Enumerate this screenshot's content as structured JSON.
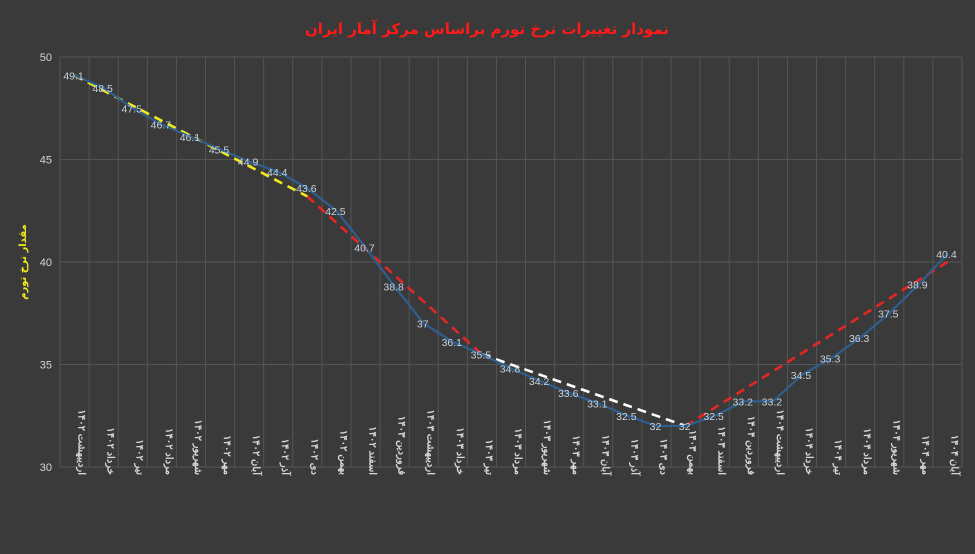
{
  "chart_data": {
    "type": "line",
    "title": "نمودار تغییرات نرخ تورم براساس مرکز آمار ایران",
    "ylabel": "مقدار نرخ تورم",
    "xlabel": "",
    "ylim": [
      30,
      50
    ],
    "yticks": [
      "30",
      "35",
      "40",
      "45",
      "50"
    ],
    "grid": true,
    "categories": [
      "اردیبهشت ۱۴۰۲",
      "خرداد ۱۴۰۲",
      "تیر ۱۴۰۲",
      "مرداد ۱۴۰۲",
      "شهریور ۱۴۰۲",
      "مهر ۱۴۰۲",
      "آبان ۱۴۰۲",
      "آذر ۱۴۰۲",
      "دی ۱۴۰۲",
      "بهمن ۱۴۰۲",
      "اسفند ۱۴۰۲",
      "فروردین ۱۴۰۳",
      "اردیبهشت ۱۴۰۳",
      "خرداد ۱۴۰۳",
      "تیر ۱۴۰۳",
      "مرداد ۱۴۰۳",
      "شهریور ۱۴۰۳",
      "مهر ۱۴۰۳",
      "آبان ۱۴۰۳",
      "آذر ۱۴۰۳",
      "دی ۱۴۰۳",
      "بهمن ۱۴۰۳",
      "اسفند ۱۴۰۳",
      "فروردین ۱۴۰۴",
      "اردیبهشت ۱۴۰۴",
      "خرداد ۱۴۰۴",
      "تیر ۱۴۰۴",
      "مرداد ۱۴۰۴",
      "شهریور ۱۴۰۴",
      "مهر ۱۴۰۴",
      "آبان ۱۴۰۴"
    ],
    "values": [
      49.1,
      48.5,
      47.5,
      46.7,
      46.1,
      45.5,
      44.9,
      44.4,
      43.6,
      42.5,
      40.7,
      38.8,
      37,
      36.1,
      35.5,
      34.8,
      34.2,
      33.6,
      33.1,
      32.5,
      32,
      32,
      32.5,
      33.2,
      33.2,
      34.5,
      35.3,
      36.3,
      37.5,
      38.9,
      40.4
    ],
    "data_labels": [
      "49.1",
      "48.5",
      "47.5",
      "46.7",
      "46.1",
      "45.5",
      "44.9",
      "44.4",
      "43.6",
      "42.5",
      "40.7",
      "38.8",
      "37",
      "36.1",
      "35.5",
      "34.8",
      "34.2",
      "33.6",
      "33.1",
      "32.5",
      "32",
      "32",
      "32.5",
      "33.2",
      "33.2",
      "34.5",
      "35.3",
      "36.3",
      "37.5",
      "38.9",
      "40.4"
    ],
    "trend_lines": [
      {
        "from_index": 0,
        "to_index": 8,
        "from_value": 49.1,
        "to_value": 43.2,
        "color": "#f2ea1d"
      },
      {
        "from_index": 8,
        "to_index": 14,
        "from_value": 43.2,
        "to_value": 35.5,
        "color": "#e32626"
      },
      {
        "from_index": 14,
        "to_index": 21,
        "from_value": 35.5,
        "to_value": 32,
        "color": "#ffffff"
      },
      {
        "from_index": 21,
        "to_index": 30,
        "from_value": 32,
        "to_value": 40.0,
        "color": "#e32626"
      }
    ],
    "colors": {
      "background": "#3a3a3a",
      "grid": "#555555",
      "series": "#2f5f8f",
      "data_label": "#c8d3de",
      "title": "#ff1a1a",
      "ylabel": "#f2ea1d",
      "tick": "#d6d6d6"
    }
  }
}
